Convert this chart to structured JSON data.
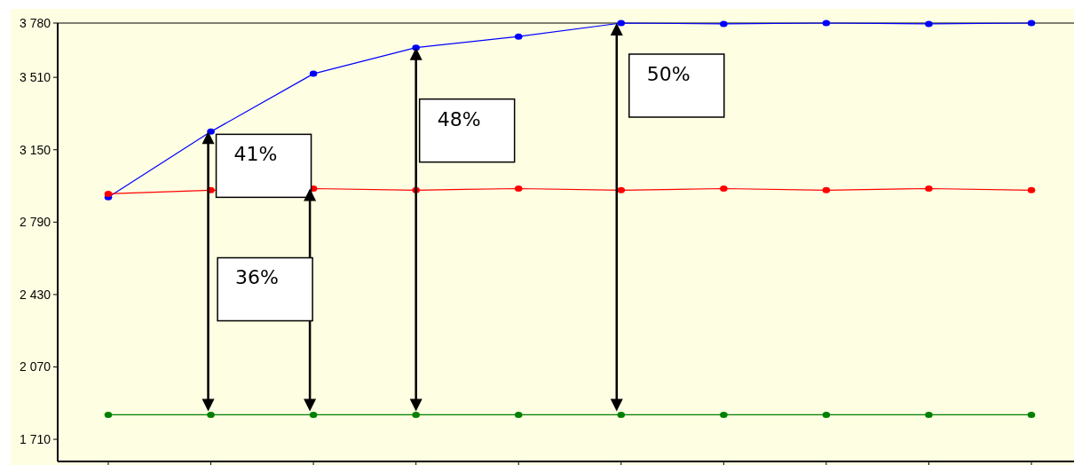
{
  "chart_data": {
    "type": "line",
    "categories": [
      null,
      null,
      null,
      null,
      null,
      null,
      null,
      null,
      null,
      null
    ],
    "series": [
      {
        "color": "#0000ff",
        "values": [
          2914,
          3240,
          3528,
          3658,
          3713,
          3780,
          3776,
          3780,
          3776,
          3780
        ]
      },
      {
        "color": "#ff0000",
        "values": [
          2931,
          2949,
          2957,
          2949,
          2957,
          2949,
          2957,
          2949,
          2957,
          2949
        ]
      },
      {
        "color": "#008000",
        "values": [
          1832,
          1832,
          1832,
          1832,
          1832,
          1832,
          1832,
          1832,
          1832,
          1832
        ]
      }
    ],
    "ylim": [
      1600,
      3780
    ],
    "yticks": [
      1710,
      2070,
      2430,
      2790,
      3150,
      3510,
      3780
    ],
    "grid": false,
    "marker": "circle",
    "annotations": [
      "41%",
      "36%",
      "48%",
      "50%"
    ]
  }
}
